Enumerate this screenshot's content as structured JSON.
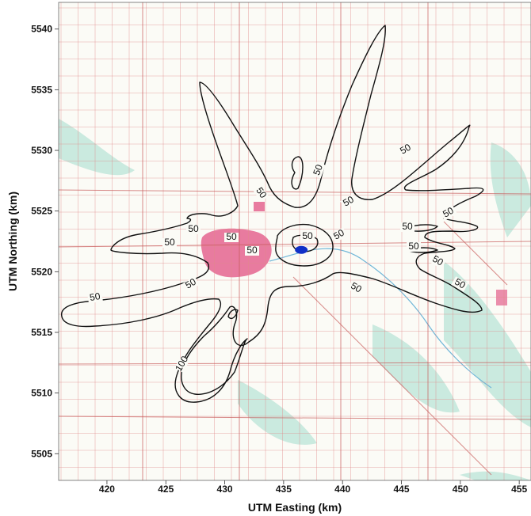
{
  "map": {
    "x_axis_title": "UTM Easting (km)",
    "y_axis_title": "UTM Northing (km)",
    "x_ticks": [
      "420",
      "425",
      "430",
      "435",
      "440",
      "445",
      "450",
      "455"
    ],
    "y_ticks": [
      "5540",
      "5535",
      "5530",
      "5525",
      "5520",
      "5515",
      "5510",
      "5505"
    ],
    "contour_labels": [
      "50",
      "50",
      "50",
      "50",
      "50",
      "50",
      "50",
      "50",
      "50",
      "50",
      "50",
      "50",
      "50",
      "50",
      "50",
      "50",
      "50",
      "100"
    ],
    "source_marker_color": "#1030c8",
    "town_color": "#e0457a",
    "grid_color": "#e08a8a",
    "water_color": "#8fd4c4"
  },
  "chart_data": {
    "type": "contour",
    "title": "",
    "xlabel": "UTM Easting (km)",
    "ylabel": "UTM Northing (km)",
    "xlim": [
      415.9,
      456.0
    ],
    "ylim": [
      5502.8,
      5542.2
    ],
    "contour_levels": [
      50,
      100
    ],
    "source_location": [
      436.5,
      5521.8
    ],
    "grid": true
  }
}
